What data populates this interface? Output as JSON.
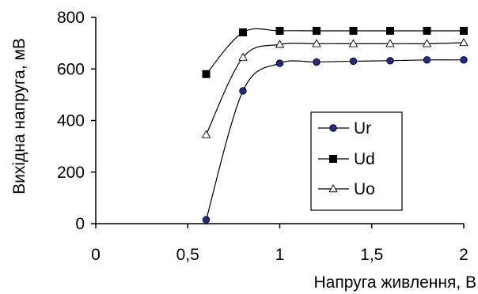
{
  "chart_data": {
    "type": "line",
    "title": "",
    "xlabel": "Напруга живлення, В",
    "ylabel": "Вихідна напруга, мВ",
    "xlim": [
      0,
      2
    ],
    "ylim": [
      0,
      800
    ],
    "x_ticks": [
      "0",
      "0,5",
      "1",
      "1,5",
      "2"
    ],
    "x_tick_values": [
      0,
      0.5,
      1,
      1.5,
      2
    ],
    "y_ticks": [
      "0",
      "200",
      "400",
      "600",
      "800"
    ],
    "y_tick_values": [
      0,
      200,
      400,
      600,
      800
    ],
    "grid": false,
    "legend_position": "center-right",
    "series": [
      {
        "name": "Ur",
        "marker": "circle",
        "marker_color": "#1f2d8f",
        "line_color": "#000000",
        "x": [
          0.6,
          0.8,
          1.0,
          1.2,
          1.4,
          1.6,
          1.8,
          2.0
        ],
        "y": [
          15,
          515,
          622,
          627,
          630,
          632,
          635,
          635
        ]
      },
      {
        "name": "Ud",
        "marker": "square",
        "marker_color": "#000000",
        "line_color": "#000000",
        "x": [
          0.6,
          0.8,
          1.0,
          1.2,
          1.4,
          1.6,
          1.8,
          2.0
        ],
        "y": [
          580,
          742,
          748,
          748,
          748,
          748,
          748,
          748
        ]
      },
      {
        "name": "Uo",
        "marker": "triangle",
        "marker_color": "#ffffff",
        "line_color": "#000000",
        "x": [
          0.6,
          0.8,
          1.0,
          1.2,
          1.4,
          1.6,
          1.8,
          2.0
        ],
        "y": [
          345,
          645,
          695,
          698,
          698,
          698,
          698,
          702
        ]
      }
    ]
  }
}
